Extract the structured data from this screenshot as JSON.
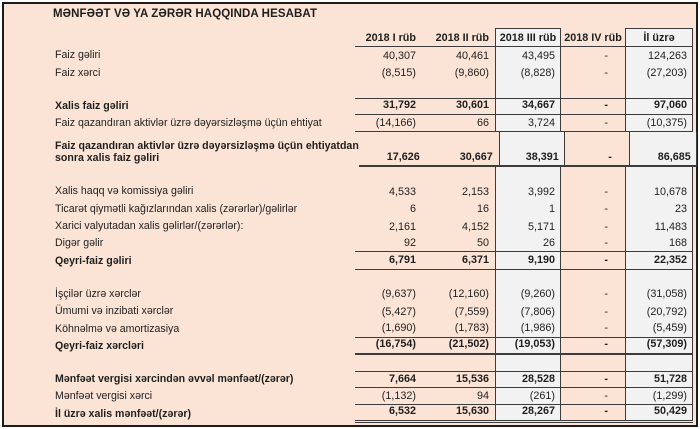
{
  "title": "MƏNFƏƏT VƏ YA ZƏRƏR HAQQINDA HESABAT",
  "colors": {
    "panel_background": "#fbe3d5",
    "highlight_column_fill": "#f2f2f2",
    "border": "#3c3c3c",
    "frame": "#1c1c1c",
    "text": "#1f1f1f"
  },
  "table": {
    "columns": [
      "2018 I rüb",
      "2018 II rüb",
      "2018 III rüb",
      "2018 IV rüb",
      "İl üzrə"
    ],
    "highlighted_columns": [
      "2018 III rüb",
      "İl üzrə"
    ],
    "rows": [
      {
        "label": "Faiz gəliri",
        "values": [
          "40,307",
          "40,461",
          "43,495",
          "-",
          "124,263"
        ]
      },
      {
        "label": "Faiz xərci",
        "values": [
          "(8,515)",
          "(9,860)",
          "(8,828)",
          "-",
          "(27,203)"
        ]
      },
      {
        "blank": true
      },
      {
        "label": "Xalis faiz gəliri",
        "bold": true,
        "border": "tb",
        "values": [
          "31,792",
          "30,601",
          "34,667",
          "-",
          "97,060"
        ]
      },
      {
        "label": "Faiz qazandıran aktivlər üzrə dəyərsizləşmə üçün ehtiyat",
        "border": "b",
        "values": [
          "(14,166)",
          "66",
          "3,724",
          "-",
          "(10,375)"
        ]
      },
      {
        "label_lines": [
          "Faiz qazandıran aktivlər üzrə dəyərsizləşmə üçün ehtiyatdan",
          "sonra xalis faiz gəliri"
        ],
        "bold": true,
        "border": "thick",
        "values": [
          "17,626",
          "30,667",
          "38,391",
          "-",
          "86,685"
        ]
      },
      {
        "blank": true
      },
      {
        "label": "Xalis haqq və komissiya gəliri",
        "values": [
          "4,533",
          "2,153",
          "3,992",
          "-",
          "10,678"
        ]
      },
      {
        "label": "Ticarət qiymətli kağızlarından xalis (zərərlər)/gəlirlər",
        "values": [
          "6",
          "16",
          "1",
          "-",
          "23"
        ]
      },
      {
        "label": "Xarici valyutadan xalis gəlirlər/(zərərlər):",
        "values": [
          "2,161",
          "4,152",
          "5,171",
          "-",
          "11,483"
        ]
      },
      {
        "label": "Digər gəlir",
        "border": "b",
        "values": [
          "92",
          "50",
          "26",
          "-",
          "168"
        ]
      },
      {
        "label": "Qeyri-faiz gəliri",
        "bold": true,
        "border": "b",
        "values": [
          "6,791",
          "6,371",
          "9,190",
          "-",
          "22,352"
        ]
      },
      {
        "blank": true
      },
      {
        "label": "İşçilər üzrə xərclər",
        "values": [
          "(9,637)",
          "(12,160)",
          "(9,260)",
          "-",
          "(31,058)"
        ]
      },
      {
        "label": "Ümumi və inzibati xərclər",
        "values": [
          "(5,427)",
          "(7,559)",
          "(7,806)",
          "-",
          "(20,792)"
        ]
      },
      {
        "label": "Köhnəlmə və amortizasiya",
        "border": "b",
        "values": [
          "(1,690)",
          "(1,783)",
          "(1,986)",
          "-",
          "(5,459)"
        ]
      },
      {
        "label": "Qeyri-faiz xərcləri",
        "bold": true,
        "border": "thick",
        "values": [
          "(16,754)",
          "(21,502)",
          "(19,053)",
          "-",
          "(57,309)"
        ]
      },
      {
        "blank": true
      },
      {
        "label": "Mənfəət vergisi xərcindən əvvəl mənfəət/(zərər)",
        "bold": true,
        "border": "tb",
        "values": [
          "7,664",
          "15,536",
          "28,528",
          "-",
          "51,728"
        ]
      },
      {
        "label": "Mənfəət vergisi xərci",
        "border": "b",
        "values": [
          "(1,132)",
          "94",
          "(261)",
          "-",
          "(1,299)"
        ]
      },
      {
        "label": "İl üzrə xalis mənfəət/(zərər)",
        "bold": true,
        "border": "double",
        "values": [
          "6,532",
          "15,630",
          "28,267",
          "-",
          "50,429"
        ]
      }
    ]
  }
}
